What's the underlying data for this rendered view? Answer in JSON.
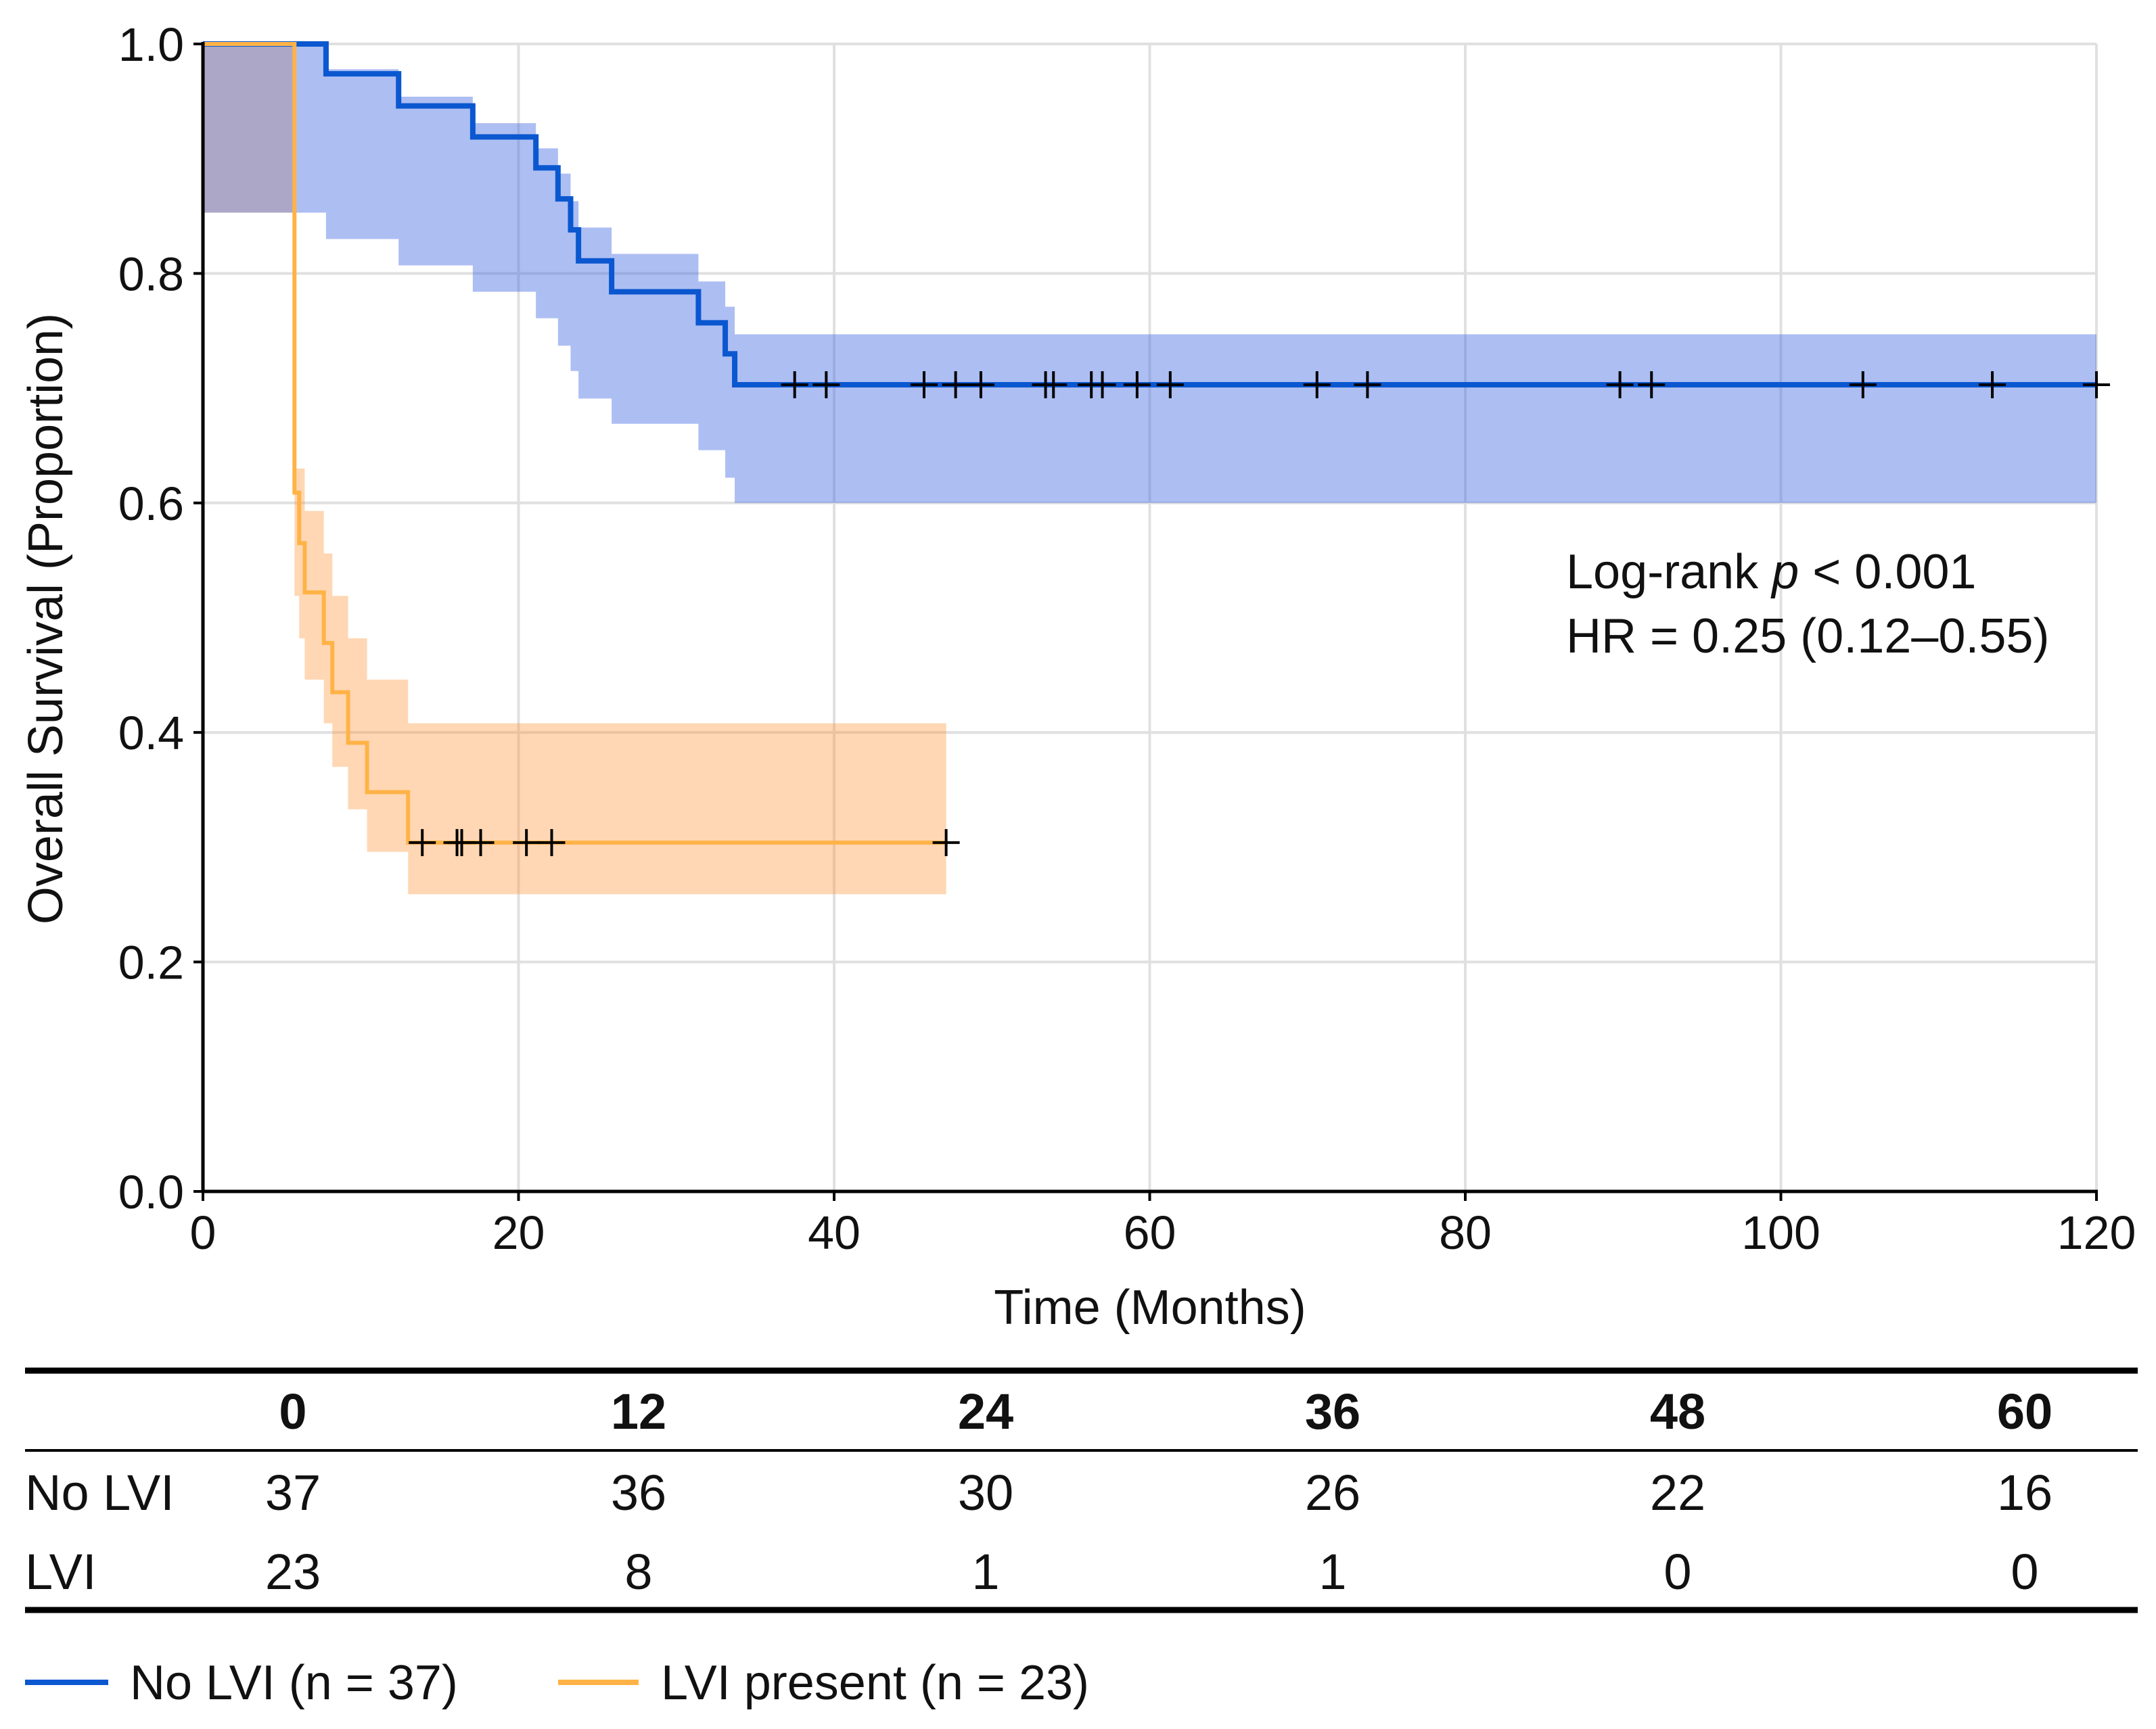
{
  "chart_data": {
    "type": "line",
    "subtype": "kaplan-meier",
    "xlabel": "Time (Months)",
    "ylabel": "Overall Survival (Proportion)",
    "xlim": [
      0,
      120
    ],
    "ylim": [
      0,
      1
    ],
    "xticks": [
      "0",
      "20",
      "40",
      "60",
      "80",
      "100",
      "120"
    ],
    "xtick_values": [
      0,
      20,
      40,
      60,
      80,
      100,
      120
    ],
    "yticks": [
      "0.0",
      "0.2",
      "0.4",
      "0.6",
      "0.8",
      "1.0"
    ],
    "ytick_values": [
      0,
      0.2,
      0.4,
      0.6,
      0.8,
      1.0
    ],
    "grid": true,
    "annotation": {
      "line1_prefix": "Log-rank ",
      "line1_italic": "p",
      "line1_suffix": " < 0.001",
      "line2": "HR = 0.25 (0.12–0.55)"
    },
    "series": [
      {
        "name": "No LVI (n = 37)",
        "color": "#0A57D0",
        "ci_color": "rgba(65,105,225,0.43)",
        "times": [
          0,
          7.8,
          12.4,
          17.1,
          21.1,
          22.5,
          23.3,
          23.8,
          25.9,
          31.4,
          33.1,
          33.7
        ],
        "survival": [
          1.0,
          0.974,
          0.946,
          0.919,
          0.892,
          0.865,
          0.838,
          0.811,
          0.784,
          0.757,
          0.73,
          0.703
        ],
        "ci_upper": [
          1.0,
          0.978,
          0.954,
          0.931,
          0.909,
          0.887,
          0.863,
          0.84,
          0.817,
          0.793,
          0.771,
          0.747
        ],
        "ci_lower": [
          0.853,
          0.83,
          0.807,
          0.784,
          0.761,
          0.737,
          0.715,
          0.691,
          0.669,
          0.646,
          0.622,
          0.6
        ],
        "end_time": 120,
        "censored": [
          37.5,
          39.5,
          45.7,
          47.7,
          49.3,
          53.4,
          53.9,
          56.3,
          57.0,
          59.2,
          61.3,
          70.6,
          73.8,
          89.8,
          91.8,
          105.2,
          113.4,
          120
        ]
      },
      {
        "name": "LVI present (n = 23)",
        "color": "#FFB347",
        "ci_color": "rgba(255,140,40,0.35)",
        "times": [
          0,
          5.8,
          6.1,
          6.45,
          7.66,
          8.2,
          9.2,
          10.4,
          13.0
        ],
        "survival": [
          1.0,
          0.609,
          0.565,
          0.522,
          0.478,
          0.435,
          0.391,
          0.348,
          0.304
        ],
        "ci_upper": [
          1.0,
          0.63,
          0.63,
          0.593,
          0.556,
          0.519,
          0.482,
          0.446,
          0.408
        ],
        "ci_lower": [
          0.853,
          0.519,
          0.482,
          0.446,
          0.408,
          0.37,
          0.333,
          0.296,
          0.259
        ],
        "end_time": 47.1,
        "censored": [
          13.9,
          16.1,
          16.4,
          17.6,
          20.5,
          22.1,
          47.1
        ]
      }
    ]
  },
  "risk_table": {
    "times": [
      "0",
      "12",
      "24",
      "36",
      "48",
      "60"
    ],
    "rows": [
      {
        "label": "No LVI",
        "values": [
          "37",
          "36",
          "30",
          "26",
          "22",
          "16"
        ]
      },
      {
        "label": "LVI",
        "values": [
          "23",
          "8",
          "1",
          "1",
          "0",
          "0"
        ]
      }
    ]
  },
  "legend": [
    {
      "label": "No LVI (n = 37)",
      "color": "#0A57D0"
    },
    {
      "label": "LVI present (n = 23)",
      "color": "#FFB347"
    }
  ]
}
